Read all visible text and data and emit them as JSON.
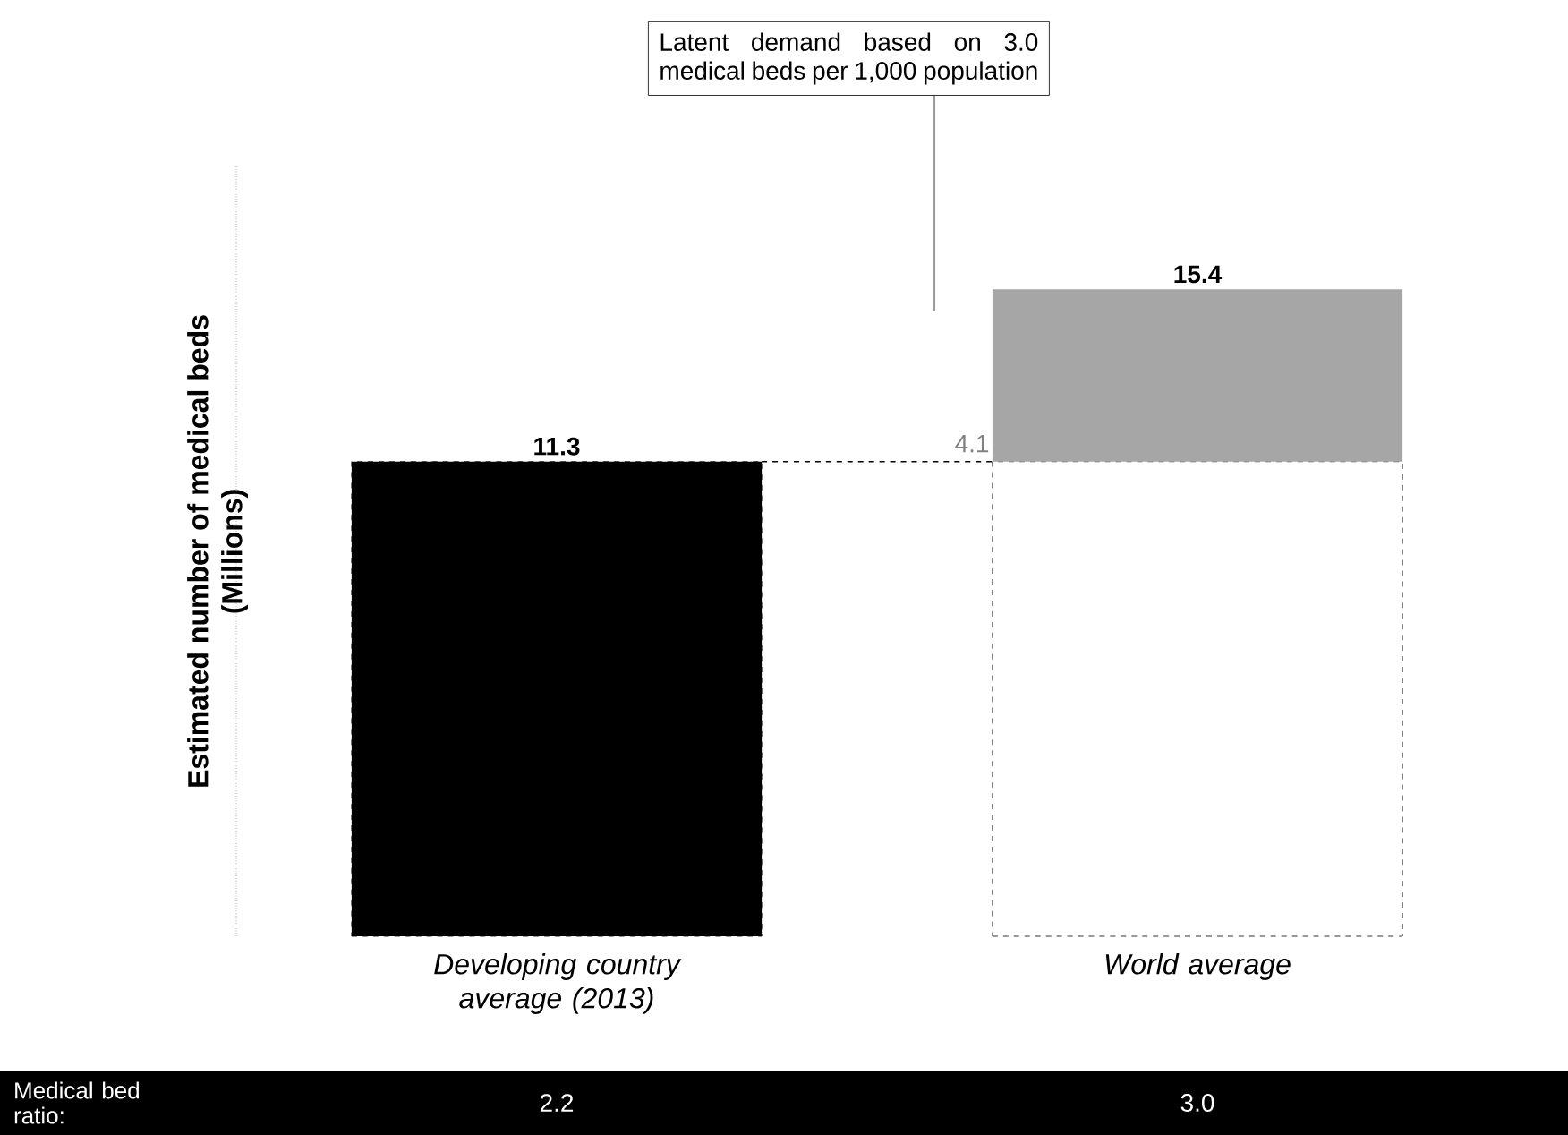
{
  "chart_data": {
    "type": "bar",
    "stacked": true,
    "ylabel": "Estimated number of medical beds\n(Millions)",
    "categories": [
      "Developing country average (2013)",
      "World average"
    ],
    "series": [
      {
        "type": "bar",
        "colors": [
          "#000000",
          "#ffffff"
        ],
        "line_style": "dashed",
        "values": [
          11.3,
          11.3
        ],
        "value_labels": [
          "11.3",
          null
        ]
      },
      {
        "type": "bar",
        "color": "#a6a6a6",
        "values": [
          null,
          4.1
        ],
        "value_labels": [
          null,
          "4.1"
        ]
      }
    ],
    "totals": [
      null,
      "15.4"
    ],
    "ref_lines": [
      {
        "axis": "y",
        "value": 11.3,
        "line_style": "dashed",
        "color": "#000000"
      }
    ],
    "annotations": [
      "Latent demand based on 3.0 medical beds per 1,000 population",
      "Medical bed ratio:",
      "2.2",
      "3.0"
    ]
  }
}
